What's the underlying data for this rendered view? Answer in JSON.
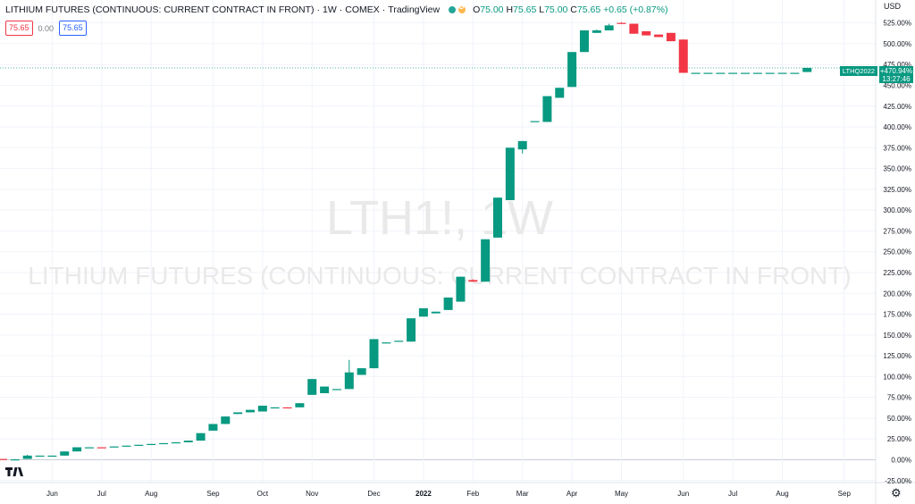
{
  "header": {
    "symbol_name": "LITHIUM FUTURES (CONTINUOUS: CURRENT CONTRACT IN FRONT)",
    "interval": "1W",
    "exchange": "COMEX",
    "source": "TradingView",
    "ohlc": {
      "o_label": "O",
      "o": "75.00",
      "h_label": "H",
      "h": "75.65",
      "l_label": "L",
      "l": "75.00",
      "c_label": "C",
      "c": "75.65",
      "change": "+0.65 (+0.87%)"
    }
  },
  "trade_boxes": {
    "sell": "75.65",
    "spread": "0.00",
    "buy": "75.65"
  },
  "currency": "USD",
  "watermark": {
    "line1": "LTH1!, 1W",
    "line2": "LITHIUM FUTURES (CONTINUOUS: CURRENT CONTRACT IN FRONT)"
  },
  "last_price": {
    "contract": "LTHQ2022",
    "value": "+470.94%",
    "countdown": "13:27:46"
  },
  "colors": {
    "up": "#089981",
    "down": "#f23645",
    "grid": "#f0f3fa",
    "text": "#131722",
    "watermark": "#e9e9ea"
  },
  "chart_data": {
    "type": "candlestick",
    "y_scale": "percent",
    "ylim": [
      -25,
      550
    ],
    "y_ticks": [
      -25,
      0,
      25,
      50,
      75,
      100,
      125,
      150,
      175,
      200,
      225,
      250,
      275,
      300,
      325,
      350,
      375,
      400,
      425,
      450,
      475,
      500,
      525
    ],
    "x_ticks": [
      {
        "label": "Jun",
        "week": 4
      },
      {
        "label": "Jul",
        "week": 8
      },
      {
        "label": "Aug",
        "week": 12
      },
      {
        "label": "Sep",
        "week": 17
      },
      {
        "label": "Oct",
        "week": 21
      },
      {
        "label": "Nov",
        "week": 25
      },
      {
        "label": "Dec",
        "week": 30
      },
      {
        "label": "2022",
        "week": 34
      },
      {
        "label": "Feb",
        "week": 38
      },
      {
        "label": "Mar",
        "week": 42
      },
      {
        "label": "Apr",
        "week": 46
      },
      {
        "label": "May",
        "week": 50
      },
      {
        "label": "Jun",
        "week": 55
      },
      {
        "label": "Jul",
        "week": 59
      },
      {
        "label": "Aug",
        "week": 63
      },
      {
        "label": "Sep",
        "week": 68
      }
    ],
    "last_value": 470.94,
    "candles": [
      {
        "w": 0,
        "o": 1,
        "h": 1,
        "l": 0,
        "c": 0
      },
      {
        "w": 1,
        "o": 0,
        "h": 1,
        "l": 0,
        "c": 0.5
      },
      {
        "w": 2,
        "o": 1,
        "h": 6,
        "l": 1,
        "c": 5
      },
      {
        "w": 3,
        "o": 5,
        "h": 5,
        "l": 5,
        "c": 5
      },
      {
        "w": 4,
        "o": 5,
        "h": 5,
        "l": 5,
        "c": 5
      },
      {
        "w": 5,
        "o": 5,
        "h": 10,
        "l": 5,
        "c": 10
      },
      {
        "w": 6,
        "o": 10,
        "h": 15,
        "l": 10,
        "c": 15
      },
      {
        "w": 7,
        "o": 14,
        "h": 15,
        "l": 14,
        "c": 15
      },
      {
        "w": 8,
        "o": 15,
        "h": 15,
        "l": 14,
        "c": 14
      },
      {
        "w": 9,
        "o": 15,
        "h": 16,
        "l": 15,
        "c": 16
      },
      {
        "w": 10,
        "o": 16,
        "h": 17,
        "l": 16,
        "c": 17
      },
      {
        "w": 11,
        "o": 17,
        "h": 18,
        "l": 17,
        "c": 18
      },
      {
        "w": 12,
        "o": 18,
        "h": 19,
        "l": 18,
        "c": 19
      },
      {
        "w": 13,
        "o": 19,
        "h": 20,
        "l": 19,
        "c": 20
      },
      {
        "w": 14,
        "o": 20,
        "h": 21,
        "l": 20,
        "c": 21
      },
      {
        "w": 15,
        "o": 21,
        "h": 23,
        "l": 21,
        "c": 23
      },
      {
        "w": 16,
        "o": 23,
        "h": 32,
        "l": 23,
        "c": 32
      },
      {
        "w": 17,
        "o": 35,
        "h": 43,
        "l": 35,
        "c": 43
      },
      {
        "w": 18,
        "o": 43,
        "h": 52,
        "l": 43,
        "c": 52
      },
      {
        "w": 19,
        "o": 55,
        "h": 57,
        "l": 55,
        "c": 57
      },
      {
        "w": 20,
        "o": 57,
        "h": 60,
        "l": 57,
        "c": 60
      },
      {
        "w": 21,
        "o": 58,
        "h": 65,
        "l": 58,
        "c": 65
      },
      {
        "w": 22,
        "o": 62,
        "h": 63,
        "l": 62,
        "c": 63
      },
      {
        "w": 23,
        "o": 63,
        "h": 63,
        "l": 62,
        "c": 62
      },
      {
        "w": 24,
        "o": 63,
        "h": 68,
        "l": 63,
        "c": 68
      },
      {
        "w": 25,
        "o": 78,
        "h": 97,
        "l": 78,
        "c": 97
      },
      {
        "w": 26,
        "o": 80,
        "h": 88,
        "l": 80,
        "c": 88
      },
      {
        "w": 27,
        "o": 84,
        "h": 85,
        "l": 84,
        "c": 85
      },
      {
        "w": 28,
        "o": 85,
        "h": 120,
        "l": 85,
        "c": 105
      },
      {
        "w": 29,
        "o": 102,
        "h": 110,
        "l": 102,
        "c": 110
      },
      {
        "w": 30,
        "o": 110,
        "h": 145,
        "l": 110,
        "c": 145
      },
      {
        "w": 31,
        "o": 140,
        "h": 141,
        "l": 140,
        "c": 141
      },
      {
        "w": 32,
        "o": 142,
        "h": 143,
        "l": 142,
        "c": 143
      },
      {
        "w": 33,
        "o": 142,
        "h": 170,
        "l": 142,
        "c": 170
      },
      {
        "w": 34,
        "o": 172,
        "h": 182,
        "l": 172,
        "c": 182
      },
      {
        "w": 35,
        "o": 176,
        "h": 178,
        "l": 176,
        "c": 178
      },
      {
        "w": 36,
        "o": 180,
        "h": 195,
        "l": 180,
        "c": 195
      },
      {
        "w": 37,
        "o": 190,
        "h": 220,
        "l": 190,
        "c": 220
      },
      {
        "w": 38,
        "o": 216,
        "h": 217,
        "l": 216,
        "c": 214
      },
      {
        "w": 39,
        "o": 214,
        "h": 265,
        "l": 214,
        "c": 265
      },
      {
        "w": 40,
        "o": 267,
        "h": 315,
        "l": 267,
        "c": 315
      },
      {
        "w": 41,
        "o": 312,
        "h": 375,
        "l": 312,
        "c": 375
      },
      {
        "w": 42,
        "o": 373,
        "h": 383,
        "l": 368,
        "c": 383
      },
      {
        "w": 43,
        "o": 406,
        "h": 407,
        "l": 406,
        "c": 407
      },
      {
        "w": 44,
        "o": 406,
        "h": 437,
        "l": 406,
        "c": 437
      },
      {
        "w": 45,
        "o": 435,
        "h": 447,
        "l": 435,
        "c": 447
      },
      {
        "w": 46,
        "o": 448,
        "h": 490,
        "l": 448,
        "c": 490
      },
      {
        "w": 47,
        "o": 490,
        "h": 516,
        "l": 490,
        "c": 516
      },
      {
        "w": 48,
        "o": 513,
        "h": 517,
        "l": 513,
        "c": 516
      },
      {
        "w": 49,
        "o": 516,
        "h": 524,
        "l": 516,
        "c": 522
      },
      {
        "w": 50,
        "o": 525,
        "h": 526,
        "l": 525,
        "c": 524
      },
      {
        "w": 51,
        "o": 524,
        "h": 524,
        "l": 512,
        "c": 512
      },
      {
        "w": 52,
        "o": 515,
        "h": 515,
        "l": 510,
        "c": 510
      },
      {
        "w": 53,
        "o": 511,
        "h": 511,
        "l": 508,
        "c": 508
      },
      {
        "w": 54,
        "o": 513,
        "h": 513,
        "l": 503,
        "c": 503
      },
      {
        "w": 55,
        "o": 505,
        "h": 505,
        "l": 465,
        "c": 465
      },
      {
        "w": 56,
        "o": 465,
        "h": 465,
        "l": 465,
        "c": 465
      },
      {
        "w": 57,
        "o": 465,
        "h": 465,
        "l": 465,
        "c": 465
      },
      {
        "w": 58,
        "o": 465,
        "h": 465,
        "l": 465,
        "c": 465
      },
      {
        "w": 59,
        "o": 465,
        "h": 465,
        "l": 465,
        "c": 465
      },
      {
        "w": 60,
        "o": 465,
        "h": 465,
        "l": 465,
        "c": 465
      },
      {
        "w": 61,
        "o": 465,
        "h": 465,
        "l": 465,
        "c": 465
      },
      {
        "w": 62,
        "o": 465,
        "h": 465,
        "l": 465,
        "c": 465
      },
      {
        "w": 63,
        "o": 465,
        "h": 465,
        "l": 465,
        "c": 465
      },
      {
        "w": 64,
        "o": 465,
        "h": 465,
        "l": 465,
        "c": 465
      },
      {
        "w": 65,
        "o": 466,
        "h": 471,
        "l": 466,
        "c": 471
      }
    ]
  }
}
